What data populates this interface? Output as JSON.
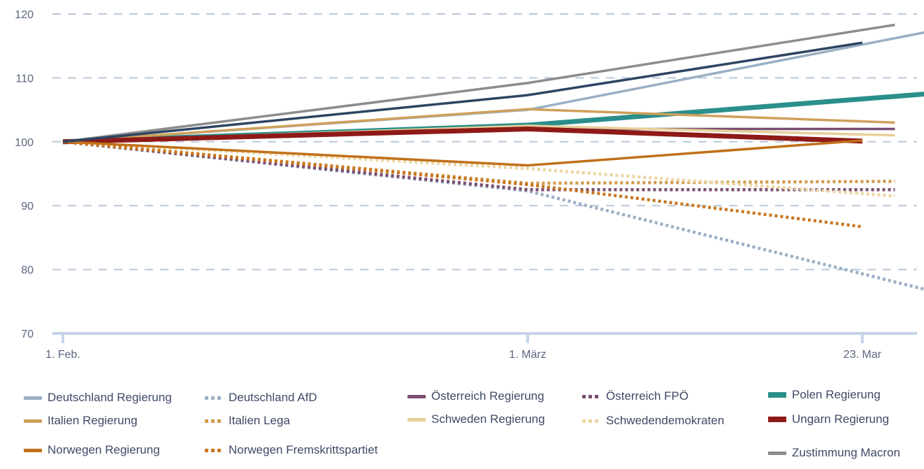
{
  "chart_data": {
    "type": "line",
    "title": "",
    "xlabel": "",
    "ylabel": "",
    "ylim": [
      70,
      120
    ],
    "yticks": [
      "70",
      "80",
      "90",
      "100",
      "110",
      "120"
    ],
    "xticks": [
      "1. Feb.",
      "1. März",
      "23. Mar"
    ],
    "x_positions": [
      0,
      1,
      1.72
    ],
    "grid": "horizontal dashed",
    "legend_position": "bottom",
    "series": [
      {
        "name": "Deutschland Regierung",
        "color": "#9aafc4",
        "style": "solid",
        "x": [
          0,
          1,
          1.86
        ],
        "values": [
          100,
          105,
          117.2
        ]
      },
      {
        "name": "Deutschland AfD",
        "color": "#9aafc4",
        "style": "dotted",
        "x": [
          0,
          1,
          1.86
        ],
        "values": [
          100,
          92.3,
          76.8
        ]
      },
      {
        "name": "Österreich Regierung",
        "color": "#7a4e70",
        "style": "solid",
        "x": [
          0,
          1,
          1.79
        ],
        "values": [
          100,
          102,
          102
        ]
      },
      {
        "name": "Österreich FPÖ",
        "color": "#7a4e70",
        "style": "dotted",
        "x": [
          0,
          1,
          1.79
        ],
        "values": [
          100,
          92.5,
          92.5
        ]
      },
      {
        "name": "Polen Regierung",
        "color": "#2a8f8a",
        "style": "thick",
        "x": [
          0,
          1,
          1.86
        ],
        "values": [
          100,
          102.6,
          107.5
        ]
      },
      {
        "name": "Italien Regierung",
        "color": "#cfa05c",
        "style": "solid",
        "x": [
          0,
          1,
          1.79
        ],
        "values": [
          100,
          105.1,
          103
        ]
      },
      {
        "name": "Italien Lega",
        "color": "#cf9a4e",
        "style": "dotted",
        "x": [
          0,
          1,
          1.79
        ],
        "values": [
          100,
          93.5,
          93.8
        ]
      },
      {
        "name": "Schweden Regierung",
        "color": "#e8cf9a",
        "style": "solid",
        "x": [
          0,
          1,
          1.79
        ],
        "values": [
          100,
          102.5,
          101
        ]
      },
      {
        "name": "Schwedendemokraten",
        "color": "#ecd6a4",
        "style": "dotted",
        "x": [
          0,
          1,
          1.79
        ],
        "values": [
          100,
          95.8,
          91.5
        ]
      },
      {
        "name": "Ungarn Regierung",
        "color": "#8e1a18",
        "style": "thick",
        "x": [
          0,
          1,
          1.72
        ],
        "values": [
          100,
          102,
          100.1
        ]
      },
      {
        "name": "Norwegen Regierung",
        "color": "#c0701a",
        "style": "solid",
        "x": [
          0,
          1,
          1.72
        ],
        "values": [
          100,
          96.3,
          100.2
        ]
      },
      {
        "name": "Norwegen Fremskrittspartiet",
        "color": "#c8761e",
        "style": "dotted",
        "x": [
          0,
          1,
          1.72
        ],
        "values": [
          100,
          93.3,
          86.7
        ]
      },
      {
        "name": "Zustimmung Macron",
        "color": "#8c8c8c",
        "style": "solid",
        "x": [
          0,
          1,
          1.79
        ],
        "values": [
          100,
          109.2,
          118.3
        ]
      },
      {
        "name": "Deutschland Regierung (dunkel)",
        "color": "#2e4462",
        "style": "solid",
        "x": [
          0,
          1,
          1.72
        ],
        "values": [
          100,
          107.3,
          115.5
        ],
        "legend": false
      }
    ],
    "legend": [
      {
        "label": "Deutschland Regierung",
        "series": 0
      },
      {
        "label": "Deutschland AfD",
        "series": 1
      },
      {
        "label": "Österreich Regierung",
        "series": 2
      },
      {
        "label": "Österreich FPÖ",
        "series": 3
      },
      {
        "label": "Polen Regierung",
        "series": 4
      },
      {
        "label": "Italien Regierung",
        "series": 5
      },
      {
        "label": "Italien Lega",
        "series": 6
      },
      {
        "label": "Schweden Regierung",
        "series": 7
      },
      {
        "label": "Schwedendemokraten",
        "series": 8
      },
      {
        "label": "Ungarn Regierung",
        "series": 9
      },
      {
        "label": "Norwegen Regierung",
        "series": 10
      },
      {
        "label": "Norwegen Fremskrittspartiet",
        "series": 11
      },
      {
        "label": "Zustimmung Macron",
        "series": 12
      }
    ]
  }
}
